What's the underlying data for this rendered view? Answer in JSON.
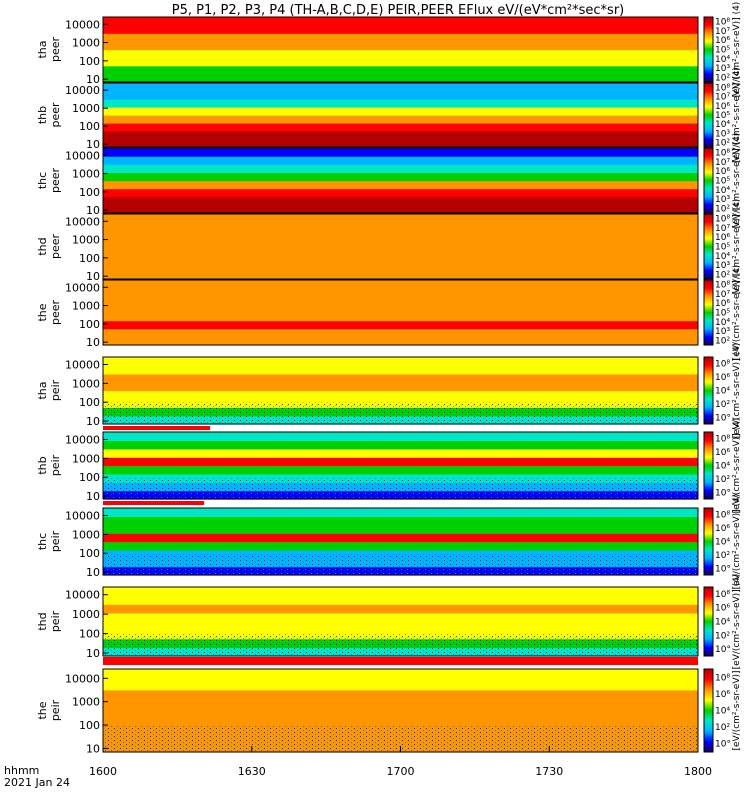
{
  "title": "P5, P1, P2, P3, P4 (TH-A,B,C,D,E) PEIR,PEER EFlux eV/(eV*cm²*sec*sr)",
  "colorbar_label_short": "[eV/(cm²-s-sr-eV)] (4)",
  "colorbar_label_bottom": "[eV/(cm²-s-sr-eV)]",
  "colorbar_ticks_electron": [
    "10²",
    "10³",
    "10⁴",
    "10⁵",
    "10⁶",
    "10⁷",
    "10⁸"
  ],
  "colorbar_ticks_ion": [
    "10°",
    "10²",
    "10⁴",
    "10⁶",
    "10⁸"
  ],
  "footer": {
    "axis_name": "hhmm",
    "date": "2021 Jan 24"
  },
  "colors": {
    "colormap": [
      "#1a0050",
      "#0000ff",
      "#00b4ff",
      "#00e6c8",
      "#00d000",
      "#ffff00",
      "#ff9600",
      "#ff0000",
      "#b40000"
    ],
    "data_gap_bar": "#ff0000",
    "low_count_pixels": "#000000"
  },
  "chart_data": {
    "type": "heatmap",
    "x_axis": {
      "ticks": [
        "1600",
        "1630",
        "1700",
        "1730",
        "1800"
      ],
      "range": [
        "16:00",
        "18:00"
      ]
    },
    "y_axis": {
      "scale": "log",
      "ticks": [
        "10",
        "100",
        "1000",
        "10000"
      ],
      "range_eV": [
        7,
        25000
      ]
    },
    "panels": [
      {
        "probe": "tha",
        "species": "peer",
        "label": "tha\npeer",
        "cb_ticks": "electron",
        "profile": [
          5,
          5.4,
          5.7,
          6,
          6.5,
          7,
          7.5,
          8
        ]
      },
      {
        "probe": "thb",
        "species": "peer",
        "label": "thb\npeer",
        "cb_ticks": "electron",
        "profile": [
          8.5,
          8.7,
          8.4,
          7.2,
          5.5,
          4,
          3,
          2.5
        ]
      },
      {
        "probe": "thc",
        "species": "peer",
        "label": "thc\npeer",
        "cb_ticks": "electron",
        "profile": [
          8.5,
          8.7,
          8.4,
          7.2,
          5.4,
          3.8,
          2.8,
          2.2
        ]
      },
      {
        "probe": "thd",
        "species": "peer",
        "label": "thd\npeer",
        "cb_ticks": "electron",
        "profile": [
          6.5,
          6.7,
          6.9,
          7.1,
          7.2,
          7,
          6.8,
          6.5
        ]
      },
      {
        "probe": "the",
        "species": "peer",
        "label": "the\npeer",
        "cb_ticks": "electron",
        "profile": [
          7.3,
          7.4,
          7.5,
          7.4,
          7.2,
          7,
          6.8,
          6.5
        ]
      },
      {
        "probe": "tha",
        "species": "peir",
        "label": "tha\npeir",
        "cb_ticks": "ion",
        "profile": [
          3.5,
          5.2,
          6.3,
          6.2,
          6.5,
          6.5,
          6,
          5.5
        ]
      },
      {
        "probe": "thb",
        "species": "peir",
        "label": "thb\npeir",
        "cb_ticks": "ion",
        "profile": [
          2,
          2.5,
          3.5,
          5,
          8,
          5.5,
          4.7,
          4
        ]
      },
      {
        "probe": "thc",
        "species": "peir",
        "label": "thc\npeir",
        "cb_ticks": "ion",
        "profile": [
          2,
          2.5,
          3.3,
          4.8,
          8,
          5.3,
          4.8,
          4.2
        ]
      },
      {
        "probe": "thd",
        "species": "peir",
        "label": "thd\npeir",
        "cb_ticks": "ion",
        "profile": [
          3.5,
          5,
          6,
          6.2,
          6.3,
          6.5,
          6.2,
          6
        ]
      },
      {
        "probe": "the",
        "species": "peir",
        "label": "the\npeir",
        "cb_ticks": "ion",
        "profile": [
          6.5,
          6.7,
          6.8,
          6.9,
          6.8,
          6.6,
          6.4,
          6
        ]
      }
    ]
  }
}
